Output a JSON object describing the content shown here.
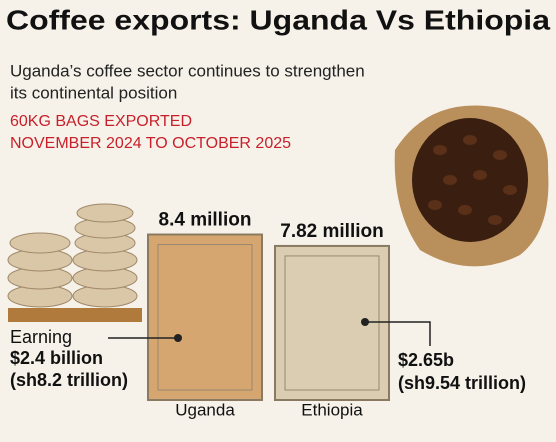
{
  "chart_data": {
    "type": "bar",
    "title": "Coffee exports: Uganda Vs Ethiopia",
    "subtitle": [
      "Uganda’s coffee sector continues to strengthen",
      "its continental position"
    ],
    "measure": [
      "60KG BAGS EXPORTED",
      "NOVEMBER 2024 TO OCTOBER 2025"
    ],
    "categories": [
      "Uganda",
      "Ethiopia"
    ],
    "values": [
      8.4,
      7.82
    ],
    "value_labels": [
      "8.4 million",
      "7.82 million"
    ],
    "colors": [
      "#d5a66f",
      "#dbcdb2"
    ],
    "annotations": [
      [
        "Earning",
        "$2.4 billion",
        "(sh8.2 trillion)"
      ],
      [
        "$2.65b",
        "(sh9.54 trillion)"
      ]
    ]
  }
}
